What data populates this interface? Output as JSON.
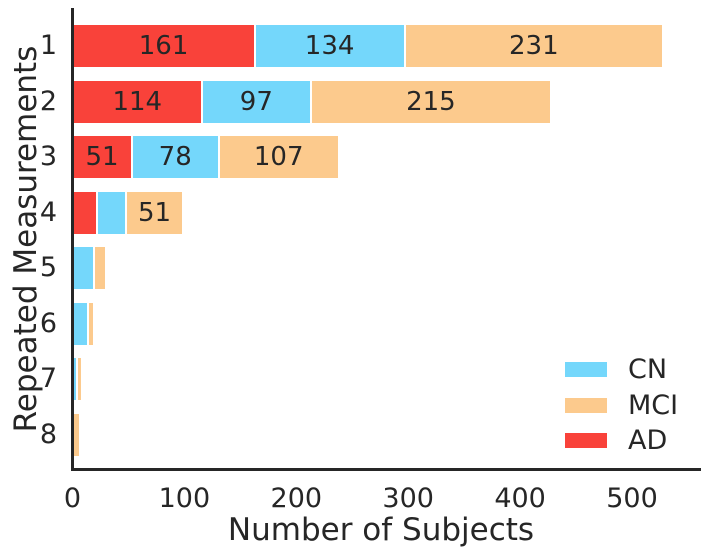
{
  "figure": {
    "xlabel": "Number of Subjects",
    "ylabel": "Repeated Measurements"
  },
  "colors": {
    "text": "#262626",
    "spine": "#262626",
    "background": "#ffffff",
    "cn": "#74D7FB",
    "mci": "#FCCA8D",
    "ad": "#F9423A"
  },
  "chart_data": {
    "type": "bar",
    "orientation": "horizontal",
    "stacked": true,
    "title": "",
    "xlabel": "Number of Subjects",
    "ylabel": "Repeated Measurements",
    "categories": [
      "1",
      "2",
      "3",
      "4",
      "5",
      "6",
      "7",
      "8"
    ],
    "x_tick_labels": [
      "0",
      "100",
      "200",
      "300",
      "400",
      "500"
    ],
    "x_tick_values": [
      0,
      100,
      200,
      300,
      400,
      500
    ],
    "xlim": [
      0,
      562
    ],
    "grid": false,
    "legend_position": "lower-right",
    "series": [
      {
        "name": "AD",
        "color": "#F9423A",
        "values": [
          161,
          114,
          51,
          20,
          0,
          0,
          0,
          0
        ]
      },
      {
        "name": "CN",
        "color": "#74D7FB",
        "values": [
          134,
          97,
          78,
          26,
          17,
          12,
          2,
          0
        ]
      },
      {
        "name": "MCI",
        "color": "#FCCA8D",
        "values": [
          231,
          215,
          107,
          51,
          11,
          5,
          5,
          5
        ]
      }
    ],
    "bar_label_min_value": 40,
    "legend": [
      {
        "label": "CN",
        "color": "#74D7FB"
      },
      {
        "label": "MCI",
        "color": "#FCCA8D"
      },
      {
        "label": "AD",
        "color": "#F9423A"
      }
    ]
  }
}
